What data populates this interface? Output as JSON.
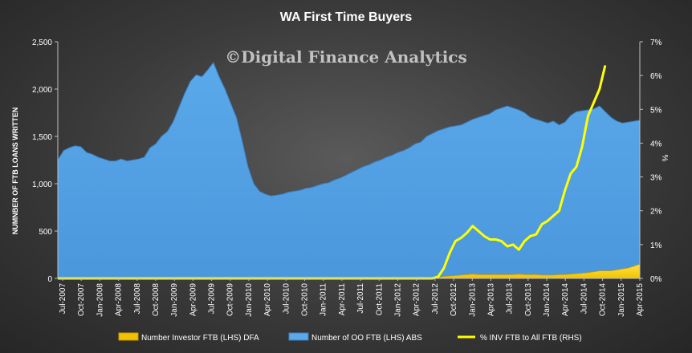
{
  "chart_data": {
    "type": "area",
    "title": "WA First Time Buyers",
    "watermark": "©Digital Finance Analytics",
    "ylabel": "NUMNBER OF FTB LOANS WRITTEN",
    "y2label": "%",
    "ylim": [
      0,
      2500
    ],
    "y2lim": [
      0,
      7
    ],
    "yticks": [
      "0",
      "500",
      "1,000",
      "1,500",
      "2,000",
      "2,500"
    ],
    "y2ticks": [
      "0%",
      "1%",
      "2%",
      "3%",
      "4%",
      "5%",
      "6%",
      "7%"
    ],
    "grid": false,
    "legend_position": "bottom",
    "colors": {
      "oo_area": "#5aa9ea",
      "oo_edge": "#3a7fc4",
      "inv_area": "#f2c200",
      "ratio_line": "#ffff00"
    },
    "xtick_labels": [
      "Jul-2007",
      "Oct-2007",
      "Jan-2008",
      "Apr-2008",
      "Jul-2008",
      "Oct-2008",
      "Jan-2009",
      "Apr-2009",
      "Jul-2009",
      "Oct-2009",
      "Jan-2010",
      "Apr-2010",
      "Jul-2010",
      "Oct-2010",
      "Jan-2011",
      "Apr-2011",
      "Jul-2011",
      "Oct-2011",
      "Jan-2012",
      "Apr-2012",
      "Jul-2012",
      "Oct-2012",
      "Jan-2013",
      "Apr-2013",
      "Jul-2013",
      "Oct-2013",
      "Jan-2014",
      "Apr-2014",
      "Jul-2014",
      "Oct-2014",
      "Jan-2015",
      "Apr-2015"
    ],
    "series": [
      {
        "name": "Number of OO FTB (LHS) ABS",
        "axis": "left",
        "values": [
          1250,
          1350,
          1380,
          1400,
          1390,
          1330,
          1310,
          1280,
          1260,
          1240,
          1240,
          1260,
          1240,
          1250,
          1260,
          1280,
          1380,
          1420,
          1500,
          1550,
          1650,
          1800,
          1950,
          2080,
          2150,
          2130,
          2200,
          2280,
          2130,
          2000,
          1850,
          1700,
          1450,
          1180,
          1000,
          920,
          890,
          870,
          880,
          890,
          910,
          920,
          930,
          950,
          960,
          980,
          1000,
          1010,
          1040,
          1060,
          1090,
          1120,
          1150,
          1180,
          1200,
          1230,
          1250,
          1280,
          1300,
          1330,
          1350,
          1380,
          1420,
          1440,
          1500,
          1530,
          1560,
          1580,
          1600,
          1610,
          1620,
          1650,
          1680,
          1700,
          1720,
          1740,
          1780,
          1800,
          1820,
          1800,
          1780,
          1750,
          1700,
          1680,
          1660,
          1640,
          1660,
          1620,
          1650,
          1720,
          1760,
          1770,
          1780,
          1790,
          1820,
          1760,
          1700,
          1660,
          1640,
          1650,
          1660,
          1670
        ]
      },
      {
        "name": "Number Investor FTB (LHS) DFA",
        "axis": "left",
        "values": [
          0,
          0,
          0,
          0,
          0,
          0,
          0,
          0,
          0,
          0,
          0,
          0,
          0,
          0,
          0,
          0,
          0,
          0,
          0,
          0,
          0,
          0,
          0,
          0,
          0,
          0,
          0,
          0,
          0,
          0,
          0,
          0,
          0,
          0,
          0,
          0,
          0,
          0,
          0,
          0,
          0,
          0,
          0,
          0,
          0,
          0,
          0,
          0,
          0,
          0,
          0,
          0,
          0,
          0,
          0,
          0,
          0,
          0,
          0,
          0,
          0,
          0,
          0,
          0,
          0,
          0,
          10,
          20,
          25,
          30,
          35,
          40,
          45,
          40,
          40,
          40,
          40,
          40,
          40,
          40,
          45,
          40,
          40,
          40,
          35,
          35,
          35,
          40,
          40,
          45,
          50,
          55,
          60,
          70,
          80,
          80,
          80,
          90,
          100,
          110,
          130,
          150
        ]
      },
      {
        "name": "% INV FTB to All FTB (RHS)",
        "axis": "right",
        "values": [
          0,
          0,
          0,
          0,
          0,
          0,
          0,
          0,
          0,
          0,
          0,
          0,
          0,
          0,
          0,
          0,
          0,
          0,
          0,
          0,
          0,
          0,
          0,
          0,
          0,
          0,
          0,
          0,
          0,
          0,
          0,
          0,
          0,
          0,
          0,
          0,
          0,
          0,
          0,
          0,
          0,
          0,
          0,
          0,
          0,
          0,
          0,
          0,
          0,
          0,
          0,
          0,
          0,
          0,
          0,
          0,
          0,
          0,
          0,
          0,
          0,
          0,
          0,
          0,
          0,
          0,
          0.05,
          0.3,
          0.75,
          1.1,
          1.2,
          1.35,
          1.55,
          1.4,
          1.25,
          1.15,
          1.15,
          1.1,
          0.95,
          1.0,
          0.85,
          1.1,
          1.25,
          1.3,
          1.6,
          1.7,
          1.85,
          2.0,
          2.6,
          3.1,
          3.3,
          3.9,
          4.8,
          5.2,
          5.6,
          6.3
        ]
      }
    ]
  }
}
